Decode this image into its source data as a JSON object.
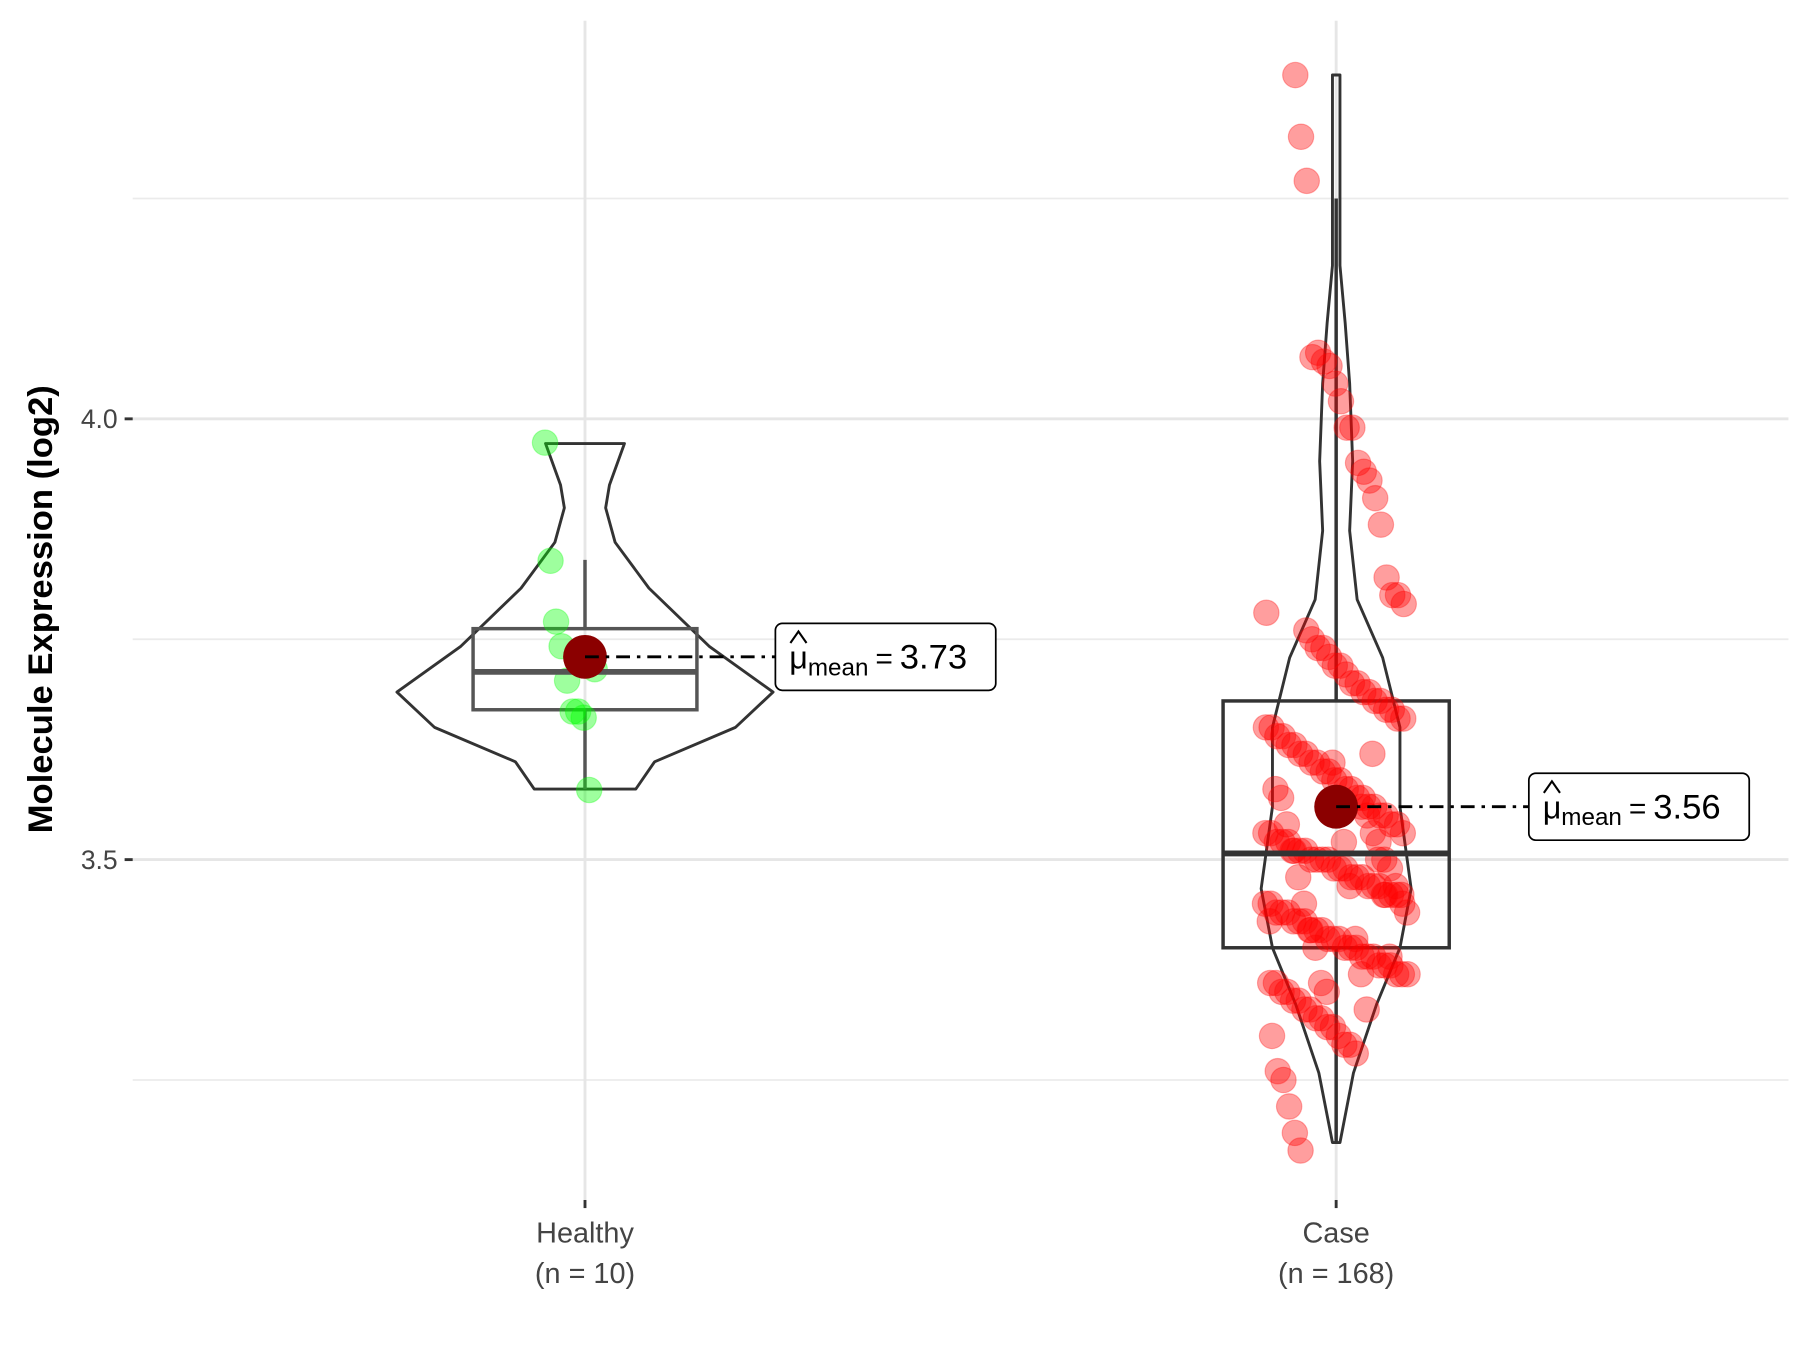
{
  "chart_data": {
    "type": "violin",
    "title": "",
    "xlabel": "",
    "ylabel": "Molecule Expression (log2)",
    "ylim": [
      3.1,
      4.45
    ],
    "yticks": [
      {
        "value": 3.5,
        "label": "3.5"
      },
      {
        "value": 4.0,
        "label": "4.0"
      }
    ],
    "grid_minor": [
      3.25,
      3.75,
      4.25
    ],
    "grid": true,
    "groups": [
      {
        "name": "Healthy",
        "n_label": "(n = 10)",
        "point_color": "#00ff00",
        "box_color": "#555555",
        "mean": 3.73,
        "mean_label": "3.73",
        "box": {
          "q1": 3.67,
          "median": 3.713,
          "q3": 3.762,
          "whisker_low": 3.58,
          "whisker_high": 3.84
        },
        "violin_density": [
          [
            3.972,
            0.21
          ],
          [
            3.925,
            0.13
          ],
          [
            3.899,
            0.11
          ],
          [
            3.86,
            0.16
          ],
          [
            3.808,
            0.34
          ],
          [
            3.742,
            0.66
          ],
          [
            3.69,
            1.0
          ],
          [
            3.65,
            0.8
          ],
          [
            3.611,
            0.37
          ],
          [
            3.58,
            0.27
          ]
        ],
        "values": [
          3.973,
          3.839,
          3.77,
          3.742,
          3.703,
          3.668,
          3.668,
          3.661,
          3.579,
          3.716
        ]
      },
      {
        "name": "Case",
        "n_label": "(n = 168)",
        "point_color": "#ff0000",
        "box_color": "#333333",
        "mean": 3.56,
        "mean_label": "3.56",
        "box": {
          "q1": 3.4,
          "median": 3.507,
          "q3": 3.68,
          "whisker_low": 3.18,
          "whisker_high": 4.25
        },
        "violin_density": [
          [
            4.39,
            0.05
          ],
          [
            4.174,
            0.05
          ],
          [
            4.109,
            0.12
          ],
          [
            4.04,
            0.18
          ],
          [
            3.952,
            0.22
          ],
          [
            3.873,
            0.18
          ],
          [
            3.795,
            0.28
          ],
          [
            3.729,
            0.62
          ],
          [
            3.65,
            0.85
          ],
          [
            3.56,
            0.85
          ],
          [
            3.467,
            1.0
          ],
          [
            3.4,
            0.85
          ],
          [
            3.336,
            0.54
          ],
          [
            3.258,
            0.23
          ],
          [
            3.179,
            0.05
          ]
        ],
        "values": [
          4.39,
          4.32,
          4.27,
          4.07,
          4.075,
          4.065,
          4.06,
          4.04,
          4.02,
          3.99,
          3.99,
          3.95,
          3.94,
          3.93,
          3.91,
          3.88,
          3.82,
          3.8,
          3.8,
          3.79,
          3.78,
          3.3,
          3.26,
          3.25,
          3.22,
          3.19,
          3.17,
          3.76,
          3.75,
          3.74,
          3.74,
          3.73,
          3.72,
          3.72,
          3.71,
          3.7,
          3.7,
          3.69,
          3.69,
          3.68,
          3.68,
          3.67,
          3.67,
          3.66,
          3.66,
          3.65,
          3.65,
          3.64,
          3.64,
          3.63,
          3.63,
          3.62,
          3.62,
          3.61,
          3.61,
          3.6,
          3.6,
          3.59,
          3.59,
          3.58,
          3.58,
          3.57,
          3.57,
          3.56,
          3.56,
          3.55,
          3.55,
          3.54,
          3.54,
          3.53,
          3.53,
          3.53,
          3.52,
          3.52,
          3.52,
          3.51,
          3.51,
          3.51,
          3.5,
          3.5,
          3.5,
          3.5,
          3.49,
          3.49,
          3.49,
          3.48,
          3.48,
          3.48,
          3.47,
          3.47,
          3.47,
          3.46,
          3.46,
          3.46,
          3.45,
          3.45,
          3.45,
          3.44,
          3.44,
          3.44,
          3.43,
          3.43,
          3.43,
          3.42,
          3.42,
          3.42,
          3.41,
          3.41,
          3.41,
          3.4,
          3.4,
          3.4,
          3.39,
          3.39,
          3.39,
          3.38,
          3.38,
          3.38,
          3.37,
          3.37,
          3.37,
          3.36,
          3.36,
          3.35,
          3.35,
          3.34,
          3.34,
          3.33,
          3.33,
          3.32,
          3.32,
          3.31,
          3.31,
          3.3,
          3.29,
          3.29,
          3.28,
          3.56,
          3.55,
          3.53,
          3.52,
          3.5,
          3.49,
          3.47,
          3.46,
          3.44,
          3.43,
          3.58,
          3.57,
          3.54,
          3.51,
          3.48,
          3.45,
          3.42,
          3.4,
          3.36,
          3.35,
          3.61,
          3.57,
          3.52,
          3.47,
          3.41,
          3.37,
          3.33,
          3.62,
          3.5,
          3.46,
          3.39
        ]
      }
    ],
    "mean_symbol": "μ",
    "mean_subscript": "mean",
    "mean_equals": "="
  }
}
